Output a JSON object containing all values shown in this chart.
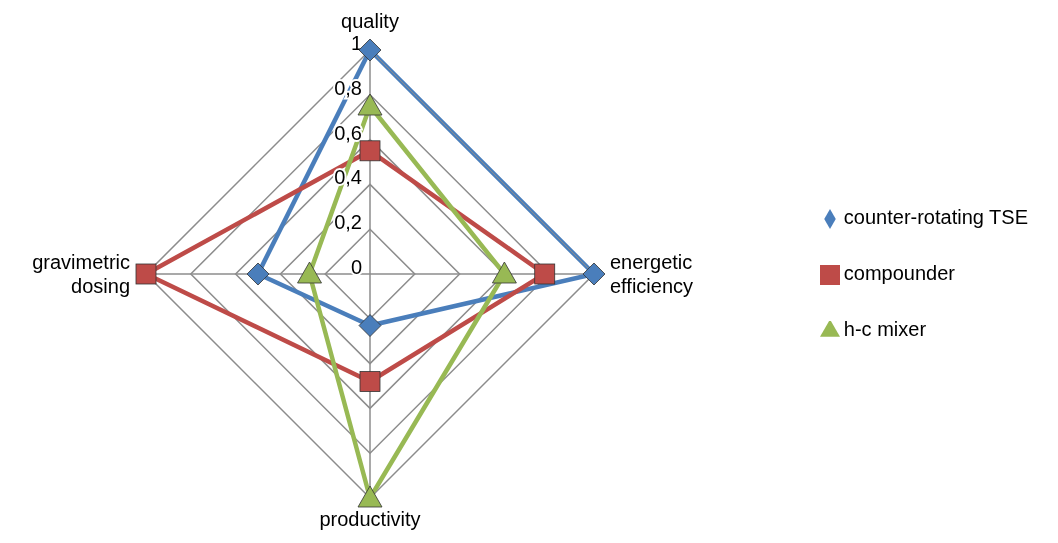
{
  "chart_data": {
    "type": "radar",
    "categories": [
      "quality",
      "energetic efficiency",
      "productivity",
      "gravimetric dosing"
    ],
    "series": [
      {
        "name": "counter-rotating TSE",
        "color": "#4a7ebb",
        "values": [
          1,
          1,
          0.23,
          0.5
        ],
        "marker": "diamond"
      },
      {
        "name": "compounder",
        "color": "#be4b48",
        "values": [
          0.55,
          0.78,
          0.48,
          1
        ],
        "marker": "square"
      },
      {
        "name": "h-c mixer",
        "color": "#98b954",
        "values": [
          0.75,
          0.6,
          1,
          0.27
        ],
        "marker": "triangle"
      }
    ],
    "ylim": [
      0,
      1
    ],
    "yticks": [
      {
        "value": 0,
        "label": "0"
      },
      {
        "value": 0.2,
        "label": "0,2"
      },
      {
        "value": 0.4,
        "label": "0,4"
      },
      {
        "value": 0.6,
        "label": "0,6"
      },
      {
        "value": 0.8,
        "label": "0,8"
      },
      {
        "value": 1,
        "label": "1"
      }
    ],
    "grid": true,
    "legend": "right"
  }
}
